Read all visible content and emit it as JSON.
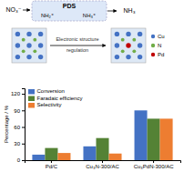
{
  "chart_data": {
    "type": "bar",
    "categories": [
      "Pd/C",
      "Cu₃N-300/AC",
      "Cu₃PdN-300/AC"
    ],
    "series": [
      {
        "name": "Conversion",
        "color": "#4472C4",
        "values": [
          10,
          25,
          90
        ]
      },
      {
        "name": "Faradaic efficiency",
        "color": "#548235",
        "values": [
          22,
          40,
          75
        ]
      },
      {
        "name": "Selectivity",
        "color": "#ED7D31",
        "values": [
          13,
          12,
          75
        ]
      }
    ],
    "ylabel": "Percentage / %",
    "ylim": [
      0,
      130
    ],
    "yticks": [
      0,
      30,
      60,
      90,
      120
    ],
    "legend": "upper left",
    "annotations": [
      "NO₃⁻",
      "PDS",
      "NH₂⁺",
      "NH₃⁺",
      "NH₃",
      "Electronic structure",
      "regulation",
      "Cu",
      "N",
      "Pd"
    ]
  }
}
